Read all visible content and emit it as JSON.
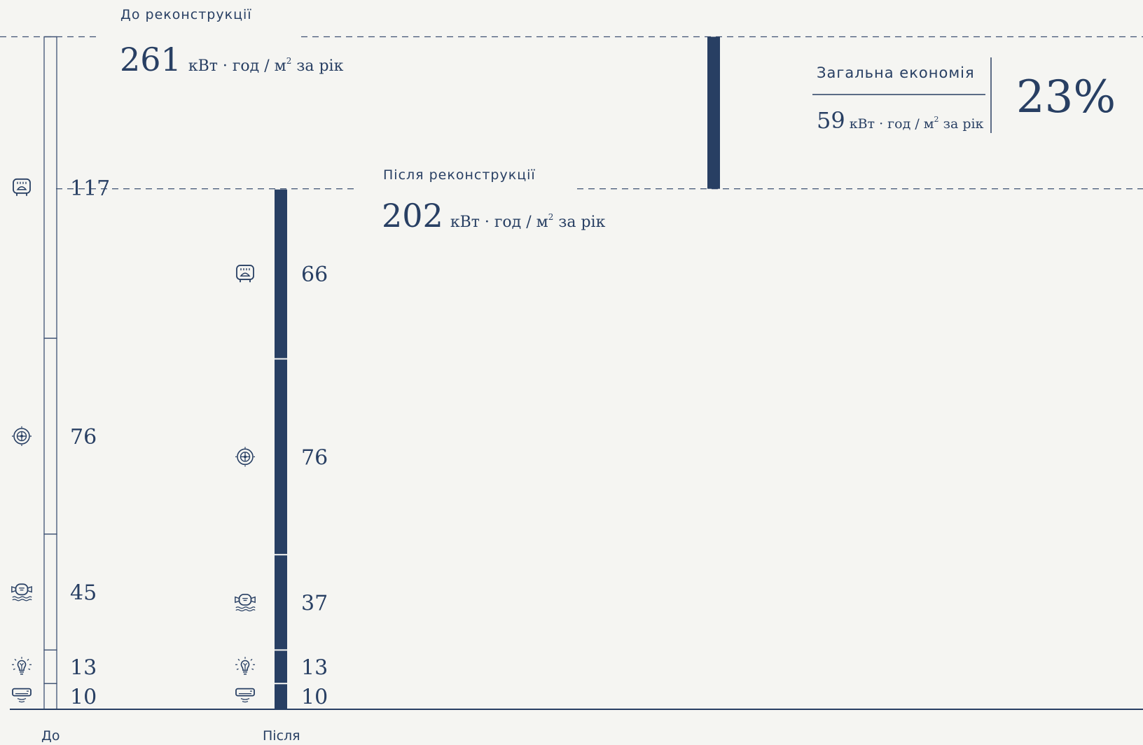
{
  "colors": {
    "background": "#f5f5f2",
    "primary": "#283f63",
    "line": "#3f5273"
  },
  "chart_data": {
    "type": "bar",
    "stacked": true,
    "unit": "кВт·год / м² за рік",
    "categories": [
      "До",
      "Після"
    ],
    "series": [
      {
        "icon": "electric-heater-icon",
        "values": [
          117,
          66
        ]
      },
      {
        "icon": "fan-ventilation-icon",
        "values": [
          76,
          76
        ]
      },
      {
        "icon": "water-heating-icon",
        "values": [
          45,
          37
        ]
      },
      {
        "icon": "lightbulb-icon",
        "values": [
          13,
          13
        ]
      },
      {
        "icon": "air-conditioner-icon",
        "values": [
          10,
          10
        ]
      }
    ],
    "totals": {
      "before": {
        "label": "До реконструкції",
        "value": "261",
        "unit_kwh": "кВт · год / м",
        "unit_sup": "2",
        "unit_tail": " за рік"
      },
      "after": {
        "label": "Після реконструкції",
        "value": "202",
        "unit_kwh": "кВт · год / м",
        "unit_sup": "2",
        "unit_tail": " за рік"
      }
    },
    "savings": {
      "title": "Загальна економія",
      "value": "59",
      "unit_kwh": "кВт · год / м",
      "unit_sup": "2",
      "unit_tail": " за рік",
      "percent": "23%"
    }
  }
}
